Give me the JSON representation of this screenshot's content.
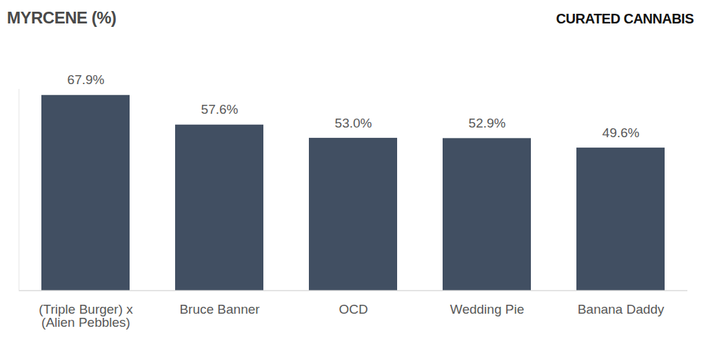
{
  "chart_data": {
    "type": "bar",
    "title": "MYRCENE (%)",
    "annotations": [
      "CURATED CANNABIS"
    ],
    "categories": [
      "(Triple Burger) x (Alien Pebbles)",
      "Bruce Banner",
      "OCD",
      "Wedding Pie",
      "Banana Daddy"
    ],
    "values": [
      67.9,
      57.6,
      53.0,
      52.9,
      49.6
    ],
    "value_labels": [
      "67.9%",
      "57.6%",
      "53.0%",
      "52.9%",
      "49.6%"
    ],
    "color": "#414f62",
    "ylim": [
      0,
      70
    ],
    "grid": false,
    "data_labels": true,
    "tick_labels": "x"
  }
}
